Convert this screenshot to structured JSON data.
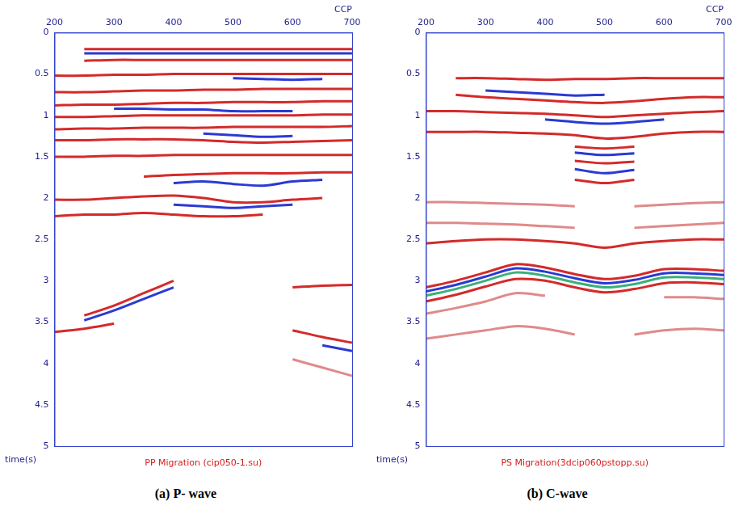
{
  "chart_data": [
    {
      "type": "line",
      "title": "(a) P- wave",
      "subtitle": "PP Migration (cip050-1.su)",
      "x_label": "CCP",
      "y_label": "time(s)",
      "xlim": [
        200,
        700
      ],
      "xticks": [
        200,
        300,
        400,
        500,
        600,
        700
      ],
      "ylim": [
        5,
        0
      ],
      "yticks": [
        0,
        0.5,
        1,
        1.5,
        2,
        2.5,
        3,
        3.5,
        4,
        4.5,
        5
      ],
      "grid": false,
      "x": [
        200,
        250,
        300,
        350,
        400,
        450,
        500,
        550,
        600,
        650,
        700
      ],
      "series": [
        {
          "color": "#d42a2a",
          "values": [
            null,
            0.2,
            0.2,
            0.2,
            0.2,
            0.2,
            0.2,
            0.2,
            0.2,
            0.2,
            0.2
          ]
        },
        {
          "color": "#2a3ad4",
          "values": [
            null,
            0.25,
            0.25,
            0.25,
            0.25,
            0.25,
            0.25,
            0.25,
            0.25,
            0.25,
            0.25
          ]
        },
        {
          "color": "#d42a2a",
          "values": [
            null,
            0.34,
            0.33,
            0.33,
            0.33,
            0.33,
            0.33,
            0.33,
            0.33,
            0.33,
            0.33
          ]
        },
        {
          "color": "#d42a2a",
          "values": [
            0.52,
            0.52,
            0.51,
            0.51,
            0.5,
            0.5,
            0.5,
            0.5,
            0.5,
            0.5,
            0.5
          ]
        },
        {
          "color": "#2a3ad4",
          "values": [
            null,
            null,
            null,
            null,
            null,
            null,
            0.55,
            0.56,
            0.57,
            0.56,
            null
          ]
        },
        {
          "color": "#d42a2a",
          "values": [
            0.72,
            0.72,
            0.71,
            0.7,
            0.7,
            0.69,
            0.69,
            0.68,
            0.68,
            0.68,
            0.68
          ]
        },
        {
          "color": "#d42a2a",
          "values": [
            0.88,
            0.87,
            0.87,
            0.86,
            0.85,
            0.85,
            0.84,
            0.84,
            0.84,
            0.83,
            0.83
          ]
        },
        {
          "color": "#2a3ad4",
          "values": [
            null,
            null,
            0.92,
            0.92,
            0.93,
            0.93,
            0.95,
            0.95,
            0.95,
            null,
            null
          ]
        },
        {
          "color": "#d42a2a",
          "values": [
            1.02,
            1.02,
            1.01,
            1.0,
            1.0,
            1.0,
            1.0,
            1.0,
            1.0,
            0.99,
            0.99
          ]
        },
        {
          "color": "#d42a2a",
          "values": [
            1.17,
            1.16,
            1.16,
            1.15,
            1.15,
            1.15,
            1.14,
            1.14,
            1.14,
            1.14,
            1.13
          ]
        },
        {
          "color": "#2a3ad4",
          "values": [
            null,
            null,
            null,
            null,
            null,
            1.22,
            1.24,
            1.26,
            1.25,
            null,
            null
          ]
        },
        {
          "color": "#d42a2a",
          "values": [
            1.3,
            1.3,
            1.29,
            1.29,
            1.29,
            1.3,
            1.32,
            1.33,
            1.32,
            1.31,
            1.3
          ]
        },
        {
          "color": "#d42a2a",
          "values": [
            1.5,
            1.5,
            1.49,
            1.49,
            1.48,
            1.48,
            1.48,
            1.48,
            1.48,
            1.48,
            1.48
          ]
        },
        {
          "color": "#d42a2a",
          "values": [
            null,
            null,
            null,
            1.74,
            1.72,
            1.71,
            1.7,
            1.7,
            1.7,
            1.69,
            1.69
          ]
        },
        {
          "color": "#2a3ad4",
          "values": [
            null,
            null,
            null,
            null,
            1.82,
            1.8,
            1.83,
            1.85,
            1.8,
            1.78,
            null
          ]
        },
        {
          "color": "#d42a2a",
          "values": [
            2.02,
            2.02,
            2.0,
            1.98,
            1.97,
            2.0,
            2.05,
            2.05,
            2.02,
            2.0,
            null
          ]
        },
        {
          "color": "#2a3ad4",
          "values": [
            null,
            null,
            null,
            null,
            2.08,
            2.1,
            2.12,
            2.1,
            2.08,
            null,
            null
          ]
        },
        {
          "color": "#d42a2a",
          "values": [
            2.22,
            2.2,
            2.2,
            2.18,
            2.2,
            2.22,
            2.22,
            2.2,
            null,
            null,
            null
          ]
        },
        {
          "color": "#d42a2a",
          "values": [
            null,
            3.42,
            3.3,
            3.15,
            3.0,
            null,
            null,
            null,
            null,
            null,
            null
          ]
        },
        {
          "color": "#2a3ad4",
          "values": [
            null,
            3.48,
            3.36,
            3.22,
            3.08,
            null,
            null,
            null,
            null,
            null,
            null
          ]
        },
        {
          "color": "#d42a2a",
          "values": [
            3.62,
            3.58,
            3.52,
            null,
            null,
            null,
            null,
            null,
            null,
            null,
            null
          ]
        },
        {
          "color": "#d42a2a",
          "values": [
            null,
            null,
            null,
            null,
            null,
            null,
            null,
            null,
            3.08,
            3.06,
            3.05
          ]
        },
        {
          "color": "#d42a2a",
          "values": [
            null,
            null,
            null,
            null,
            null,
            null,
            null,
            null,
            3.6,
            3.68,
            3.75
          ]
        },
        {
          "color": "#2a3ad4",
          "values": [
            null,
            null,
            null,
            null,
            null,
            null,
            null,
            null,
            null,
            3.78,
            3.85
          ]
        },
        {
          "color": "#e08a8a",
          "values": [
            null,
            null,
            null,
            null,
            null,
            null,
            null,
            null,
            3.95,
            4.05,
            4.15
          ]
        }
      ]
    },
    {
      "type": "line",
      "title": "(b) C-wave",
      "subtitle": "PS Migration(3dcip060pstopp.su)",
      "x_label": "CCP",
      "y_label": "time(s)",
      "xlim": [
        200,
        700
      ],
      "xticks": [
        200,
        300,
        400,
        500,
        600,
        700
      ],
      "ylim": [
        5,
        0
      ],
      "yticks": [
        0,
        0.5,
        1,
        1.5,
        2,
        2.5,
        3,
        3.5,
        4,
        4.5,
        5
      ],
      "grid": false,
      "x": [
        200,
        250,
        300,
        350,
        400,
        450,
        500,
        550,
        600,
        650,
        700
      ],
      "series": [
        {
          "color": "#d42a2a",
          "values": [
            null,
            0.55,
            0.55,
            0.56,
            0.57,
            0.56,
            0.56,
            0.55,
            0.55,
            0.55,
            0.55
          ]
        },
        {
          "color": "#2a3ad4",
          "values": [
            null,
            null,
            0.7,
            0.72,
            0.74,
            0.76,
            0.75,
            null,
            null,
            null,
            null
          ]
        },
        {
          "color": "#d42a2a",
          "values": [
            null,
            0.75,
            0.78,
            0.8,
            0.82,
            0.84,
            0.85,
            0.83,
            0.8,
            0.78,
            0.78
          ]
        },
        {
          "color": "#d42a2a",
          "values": [
            0.95,
            0.95,
            0.96,
            0.97,
            0.98,
            1.0,
            1.02,
            1.0,
            0.98,
            0.96,
            0.95
          ]
        },
        {
          "color": "#2a3ad4",
          "values": [
            null,
            null,
            null,
            null,
            1.05,
            1.08,
            1.1,
            1.08,
            1.05,
            null,
            null
          ]
        },
        {
          "color": "#d42a2a",
          "values": [
            1.2,
            1.2,
            1.2,
            1.21,
            1.22,
            1.24,
            1.28,
            1.26,
            1.22,
            1.2,
            1.2
          ]
        },
        {
          "color": "#d42a2a",
          "values": [
            null,
            null,
            null,
            null,
            null,
            1.38,
            1.4,
            1.38,
            null,
            null,
            null
          ]
        },
        {
          "color": "#2a3ad4",
          "values": [
            null,
            null,
            null,
            null,
            null,
            1.45,
            1.48,
            1.46,
            null,
            null,
            null
          ]
        },
        {
          "color": "#d42a2a",
          "values": [
            null,
            null,
            null,
            null,
            null,
            1.55,
            1.58,
            1.56,
            null,
            null,
            null
          ]
        },
        {
          "color": "#2a3ad4",
          "values": [
            null,
            null,
            null,
            null,
            null,
            1.65,
            1.7,
            1.66,
            null,
            null,
            null
          ]
        },
        {
          "color": "#d42a2a",
          "values": [
            null,
            null,
            null,
            null,
            null,
            1.78,
            1.82,
            1.78,
            null,
            null,
            null
          ]
        },
        {
          "color": "#e08a8a",
          "values": [
            2.05,
            2.05,
            2.06,
            2.07,
            2.08,
            2.1,
            null,
            2.1,
            2.08,
            2.06,
            2.05
          ]
        },
        {
          "color": "#e08a8a",
          "values": [
            2.3,
            2.3,
            2.31,
            2.32,
            2.34,
            2.36,
            null,
            2.36,
            2.34,
            2.32,
            2.3
          ]
        },
        {
          "color": "#d42a2a",
          "values": [
            2.55,
            2.52,
            2.5,
            2.5,
            2.52,
            2.55,
            2.6,
            2.55,
            2.52,
            2.5,
            2.5
          ]
        },
        {
          "color": "#d42a2a",
          "values": [
            3.08,
            3.0,
            2.9,
            2.8,
            2.84,
            2.92,
            2.98,
            2.94,
            2.86,
            2.86,
            2.88
          ]
        },
        {
          "color": "#2a3ad4",
          "values": [
            3.13,
            3.05,
            2.95,
            2.85,
            2.89,
            2.97,
            3.03,
            2.99,
            2.91,
            2.91,
            2.93
          ]
        },
        {
          "color": "#3cb07a",
          "values": [
            3.18,
            3.1,
            3.0,
            2.9,
            2.94,
            3.02,
            3.08,
            3.04,
            2.96,
            2.96,
            2.98
          ]
        },
        {
          "color": "#d42a2a",
          "values": [
            3.25,
            3.17,
            3.07,
            2.98,
            3.0,
            3.08,
            3.14,
            3.1,
            3.03,
            3.02,
            3.04
          ]
        },
        {
          "color": "#e08a8a",
          "values": [
            3.4,
            3.33,
            3.25,
            3.15,
            3.18,
            null,
            null,
            null,
            3.2,
            3.2,
            3.22
          ]
        },
        {
          "color": "#e08a8a",
          "values": [
            3.7,
            3.65,
            3.6,
            3.55,
            3.58,
            3.65,
            null,
            3.65,
            3.6,
            3.58,
            3.6
          ]
        }
      ]
    }
  ]
}
